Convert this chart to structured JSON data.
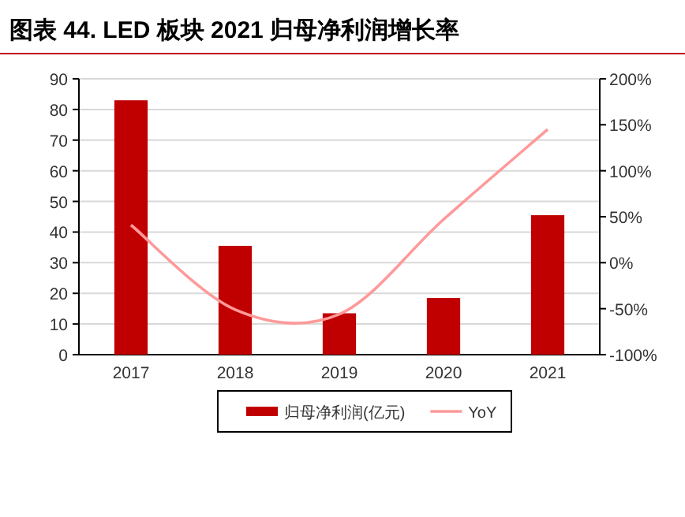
{
  "chart_data": {
    "type": "bar",
    "title": "图表 44.   LED 板块 2021 归母净利润增长率",
    "categories": [
      "2017",
      "2018",
      "2019",
      "2020",
      "2021"
    ],
    "series": [
      {
        "name": "归母净利润(亿元)",
        "color": "#c00000",
        "values": [
          83,
          35.5,
          13.5,
          18.5,
          45.5
        ]
      },
      {
        "name": "YoY",
        "type": "line",
        "axis": "y2",
        "color": "#ff9999",
        "values": [
          41,
          -51,
          -56,
          47,
          145
        ]
      }
    ],
    "ylim": [
      0,
      90
    ],
    "yticks": [
      0,
      10,
      20,
      30,
      40,
      50,
      60,
      70,
      80,
      90
    ],
    "y2lim": [
      -100,
      200
    ],
    "y2ticks": [
      {
        "value": -100,
        "label": "-100%"
      },
      {
        "value": -50,
        "label": "-50%"
      },
      {
        "value": 0,
        "label": "0%"
      },
      {
        "value": 50,
        "label": "50%"
      },
      {
        "value": 100,
        "label": "100%"
      },
      {
        "value": 150,
        "label": "150%"
      },
      {
        "value": 200,
        "label": "200%"
      }
    ],
    "grid": "y",
    "legend": "bottom",
    "marker": "none",
    "line_style": "solid"
  }
}
